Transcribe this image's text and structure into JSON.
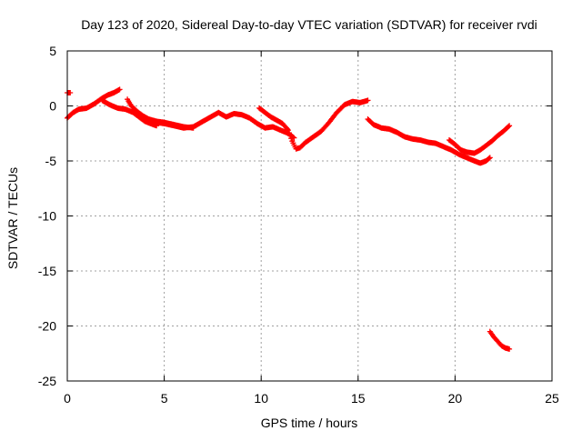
{
  "chart_data": {
    "type": "scatter",
    "title": "Day 123 of 2020, Sidereal Day-to-day VTEC variation (SDTVAR) for receiver rvdi",
    "xlabel": "GPS time / hours",
    "ylabel": "SDTVAR / TECUs",
    "xlim": [
      0,
      25
    ],
    "ylim": [
      -25,
      5
    ],
    "xticks": [
      0,
      5,
      10,
      15,
      20,
      25
    ],
    "yticks": [
      5,
      0,
      -5,
      -10,
      -15,
      -20,
      -25
    ],
    "grid": true,
    "marker": "+",
    "series": [
      {
        "name": "sdtvar",
        "color": "#ff0000",
        "segments": [
          {
            "x": [
              0.0,
              0.15
            ],
            "y": [
              1.2,
              1.2
            ]
          },
          {
            "x": [
              0.0,
              0.3,
              0.6,
              1.0,
              1.4,
              1.8,
              2.1,
              2.4,
              2.7
            ],
            "y": [
              -1.1,
              -0.6,
              -0.3,
              -0.2,
              0.2,
              0.7,
              1.0,
              1.2,
              1.5
            ]
          },
          {
            "x": [
              1.8,
              2.2,
              2.6,
              3.0,
              3.4,
              3.7,
              4.0,
              4.3,
              4.6
            ],
            "y": [
              0.5,
              0.1,
              -0.2,
              -0.3,
              -0.6,
              -1.0,
              -1.4,
              -1.6,
              -1.8
            ]
          },
          {
            "x": [
              3.1,
              3.3,
              3.6,
              3.9,
              4.2,
              4.6,
              5.0,
              5.5,
              6.0,
              6.5
            ],
            "y": [
              0.6,
              0.0,
              -0.5,
              -0.9,
              -1.2,
              -1.4,
              -1.5,
              -1.7,
              -1.9,
              -2.0
            ]
          },
          {
            "x": [
              4.6,
              5.0,
              5.5,
              6.0,
              6.5,
              7.0,
              7.5,
              7.8,
              8.2,
              8.6,
              9.0,
              9.4,
              9.8,
              10.2,
              10.6,
              11.0,
              11.4,
              11.7
            ],
            "y": [
              -1.5,
              -1.6,
              -1.8,
              -2.0,
              -1.9,
              -1.4,
              -0.9,
              -0.6,
              -1.0,
              -0.7,
              -0.8,
              -1.1,
              -1.6,
              -2.0,
              -1.9,
              -2.2,
              -2.5,
              -2.9
            ]
          },
          {
            "x": [
              9.9,
              10.2,
              10.5,
              10.8,
              11.1,
              11.4,
              11.6,
              11.8,
              12.0,
              12.3,
              12.7,
              13.1,
              13.5,
              13.9,
              14.3,
              14.7,
              15.1,
              15.5
            ],
            "y": [
              -0.2,
              -0.6,
              -1.0,
              -1.3,
              -1.6,
              -2.2,
              -3.2,
              -3.9,
              -3.8,
              -3.3,
              -2.8,
              -2.3,
              -1.5,
              -0.6,
              0.1,
              0.4,
              0.3,
              0.5
            ]
          },
          {
            "x": [
              15.5,
              15.8,
              16.2,
              16.6,
              17.0,
              17.4,
              17.8,
              18.2,
              18.6,
              19.0,
              19.4,
              19.8,
              20.2,
              20.6,
              21.0,
              21.3,
              21.6,
              21.8
            ],
            "y": [
              -1.2,
              -1.7,
              -2.0,
              -2.1,
              -2.4,
              -2.8,
              -3.0,
              -3.1,
              -3.3,
              -3.4,
              -3.7,
              -4.0,
              -4.4,
              -4.7,
              -5.0,
              -5.2,
              -5.0,
              -4.7
            ]
          },
          {
            "x": [
              19.7,
              20.0,
              20.3,
              20.6,
              21.0,
              21.3,
              21.6,
              21.9,
              22.2,
              22.5,
              22.8
            ],
            "y": [
              -3.1,
              -3.5,
              -4.0,
              -4.2,
              -4.3,
              -4.0,
              -3.6,
              -3.2,
              -2.7,
              -2.3,
              -1.8
            ]
          },
          {
            "x": [
              21.8,
              22.0,
              22.2,
              22.4,
              22.6,
              22.8
            ],
            "y": [
              -20.5,
              -21.0,
              -21.4,
              -21.8,
              -22.0,
              -22.1
            ]
          }
        ]
      }
    ]
  }
}
